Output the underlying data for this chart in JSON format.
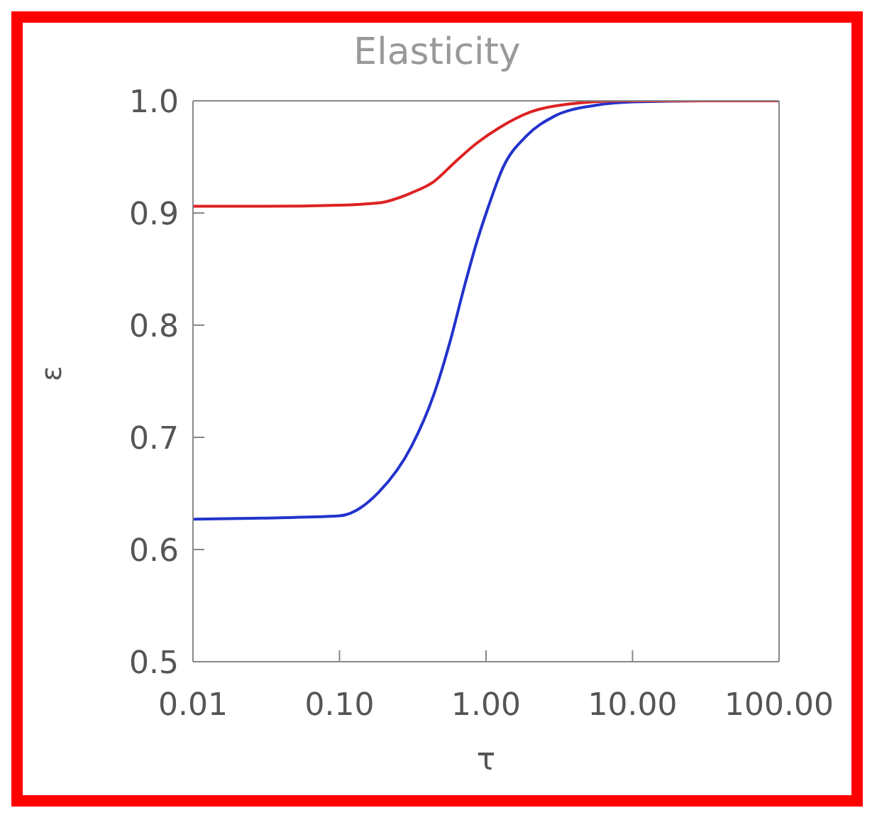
{
  "chart_data": {
    "type": "line",
    "title": "Elasticity",
    "xlabel": "τ",
    "ylabel": "ε",
    "log": "x",
    "marker": "none",
    "line_style": "solid",
    "xlim": [
      0.01,
      100
    ],
    "xticks": [
      {
        "value": 0.01,
        "label": "0.01"
      },
      {
        "value": 0.1,
        "label": "0.10"
      },
      {
        "value": 1,
        "label": "1.00"
      },
      {
        "value": 10,
        "label": "10.00"
      },
      {
        "value": 100,
        "label": "100.00"
      }
    ],
    "ylim": [
      0.5,
      1.0
    ],
    "yticks": [
      {
        "value": 0.5,
        "label": "0.5"
      },
      {
        "value": 0.6,
        "label": "0.6"
      },
      {
        "value": 0.7,
        "label": "0.7"
      },
      {
        "value": 0.8,
        "label": "0.8"
      },
      {
        "value": 0.9,
        "label": "0.9"
      },
      {
        "value": 1.0,
        "label": "1.0"
      }
    ],
    "series": [
      {
        "color": "#2233cc",
        "x": [
          0.01,
          0.03,
          0.1,
          0.185,
          0.31,
          0.44,
          0.57,
          0.71,
          0.86,
          1.04,
          1.3,
          1.9,
          2.9,
          5.6,
          10,
          30,
          100
        ],
        "values": [
          0.627,
          0.628,
          0.63,
          0.651,
          0.692,
          0.738,
          0.786,
          0.834,
          0.873,
          0.906,
          0.94,
          0.969,
          0.986,
          0.996,
          0.999,
          1.0,
          1.0
        ]
      },
      {
        "color": "#dd2222",
        "x": [
          0.01,
          0.03,
          0.1,
          0.185,
          0.31,
          0.44,
          0.61,
          0.86,
          1.23,
          2,
          3.6,
          8.5,
          30,
          100
        ],
        "values": [
          0.906,
          0.906,
          0.907,
          0.909,
          0.918,
          0.928,
          0.945,
          0.962,
          0.976,
          0.99,
          0.997,
          1.0,
          1.0,
          1.0
        ]
      }
    ]
  }
}
